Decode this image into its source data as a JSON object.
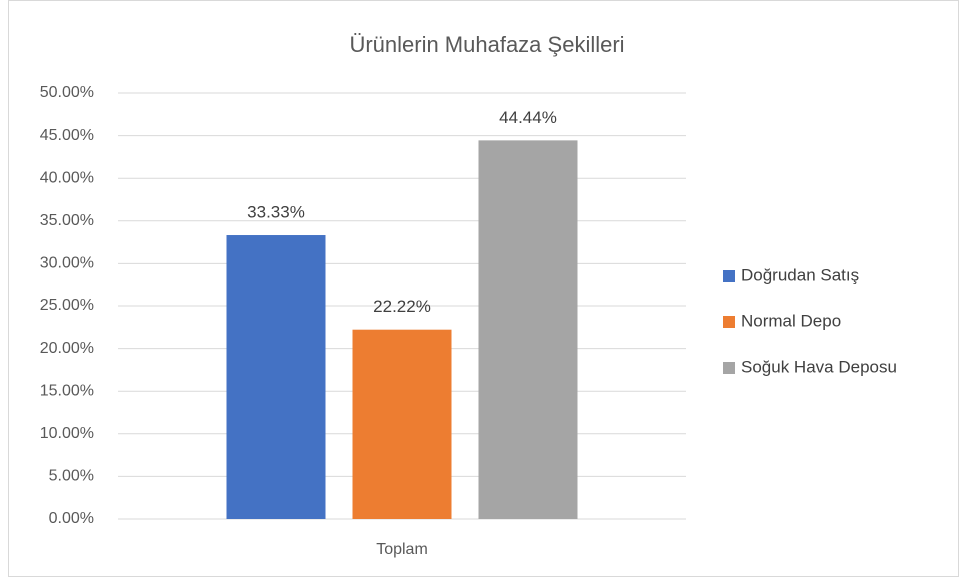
{
  "chart_data": {
    "type": "bar",
    "title": "Ürünlerin Muhafaza Şekilleri",
    "categories": [
      "Toplam"
    ],
    "series": [
      {
        "name": "Doğrudan Satış",
        "color": "#4472c4",
        "values": [
          33.33
        ],
        "value_labels": [
          "33.33%"
        ]
      },
      {
        "name": "Normal Depo",
        "color": "#ed7d31",
        "values": [
          22.22
        ],
        "value_labels": [
          "22.22%"
        ]
      },
      {
        "name": "Soğuk Hava Deposu",
        "color": "#a5a5a5",
        "values": [
          44.44
        ],
        "value_labels": [
          "44.44%"
        ]
      }
    ],
    "ylim": [
      0,
      50
    ],
    "yticks": [
      {
        "value": 0,
        "label": "0.00%"
      },
      {
        "value": 5,
        "label": "5.00%"
      },
      {
        "value": 10,
        "label": "10.00%"
      },
      {
        "value": 15,
        "label": "15.00%"
      },
      {
        "value": 20,
        "label": "20.00%"
      },
      {
        "value": 25,
        "label": "25.00%"
      },
      {
        "value": 30,
        "label": "30.00%"
      },
      {
        "value": 35,
        "label": "35.00%"
      },
      {
        "value": 40,
        "label": "40.00%"
      },
      {
        "value": 45,
        "label": "45.00%"
      },
      {
        "value": 50,
        "label": "50.00%"
      }
    ],
    "grid": true,
    "legend": "right"
  }
}
